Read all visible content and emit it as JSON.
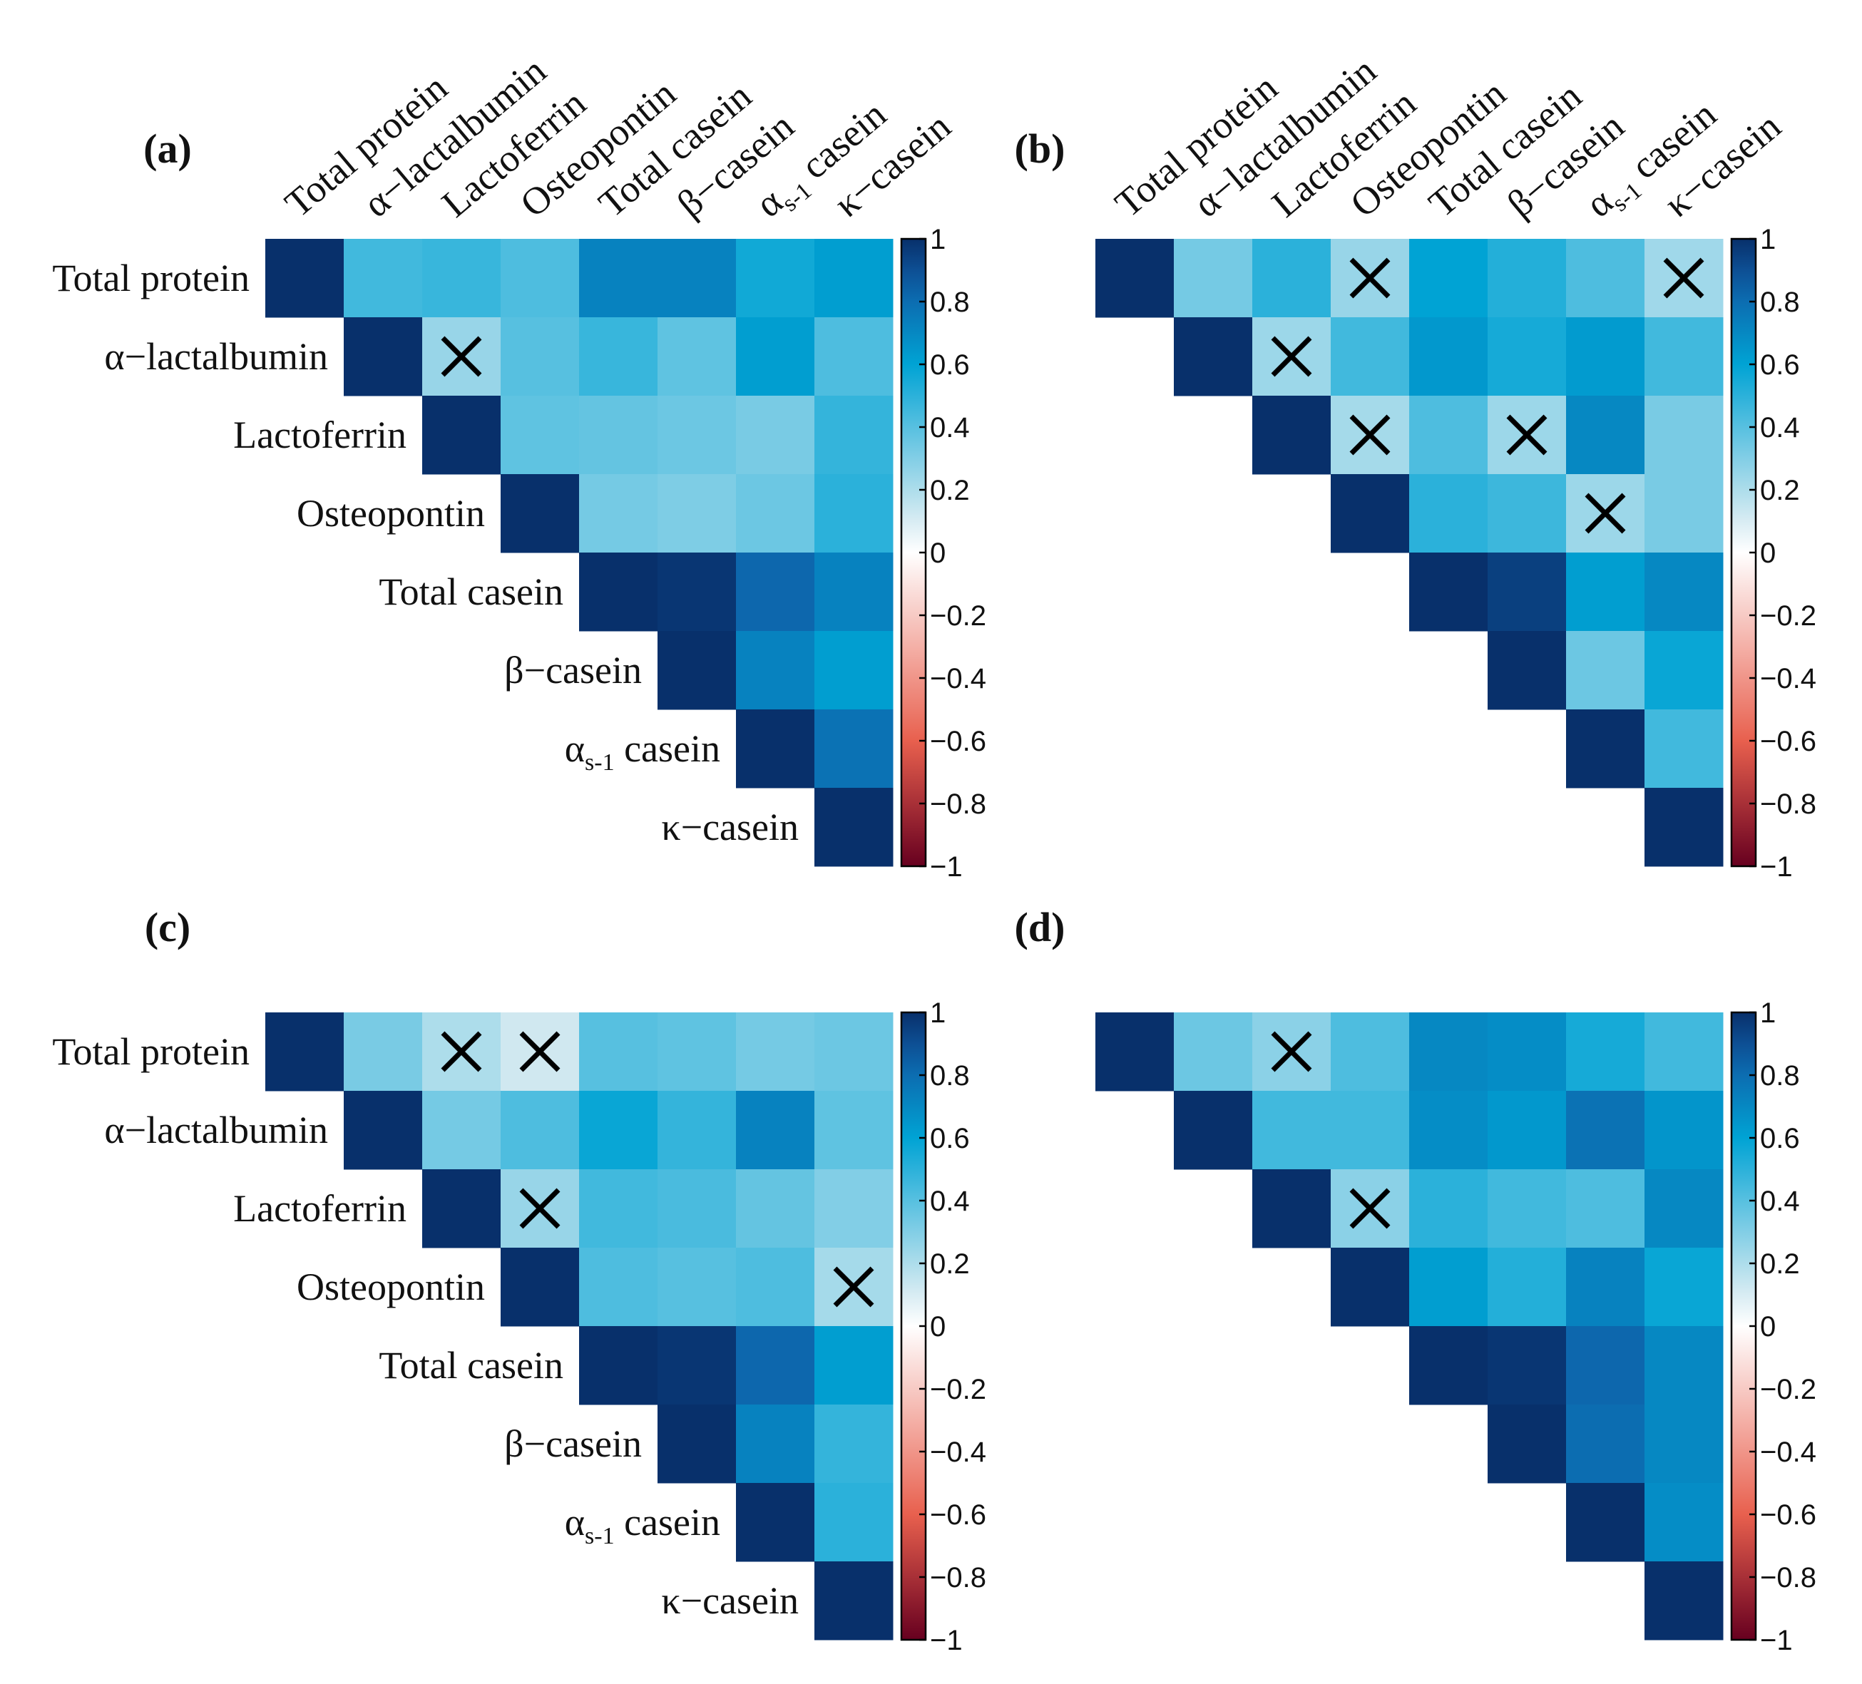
{
  "colorbar": {
    "range": [
      -1,
      1
    ],
    "ticks": [
      "1",
      "0.8",
      "0.6",
      "0.4",
      "0.2",
      "0",
      "−0.2",
      "−0.4",
      "−0.6",
      "−0.8",
      "−1"
    ],
    "colors": {
      "neg_end": "#67001f",
      "neg_mid": "#e8604e",
      "zero": "#ffffff",
      "pos_low": "#d0e8f0",
      "pos_mid": "#00a3d4",
      "pos_high": "#0f5fa8",
      "pos_end": "#08306b"
    }
  },
  "chart_data": [
    {
      "type": "heatmap",
      "label": "(a)",
      "variables": [
        "Total protein",
        "α−lactalbumin",
        "Lactoferrin",
        "Osteopontin",
        "Total casein",
        "β−casein",
        "αs-1 casein",
        "κ−casein"
      ],
      "show_column_labels": true,
      "show_row_labels": true,
      "matrix": [
        [
          1,
          0.45,
          0.47,
          0.42,
          0.72,
          0.72,
          0.56,
          0.62
        ],
        [
          null,
          1,
          0.25,
          0.4,
          0.47,
          0.38,
          0.62,
          0.42
        ],
        [
          null,
          null,
          1,
          0.38,
          0.37,
          0.35,
          0.32,
          0.48
        ],
        [
          null,
          null,
          null,
          1,
          0.33,
          0.31,
          0.35,
          0.5
        ],
        [
          null,
          null,
          null,
          null,
          1,
          0.98,
          0.82,
          0.72
        ],
        [
          null,
          null,
          null,
          null,
          null,
          1,
          0.72,
          0.62
        ],
        [
          null,
          null,
          null,
          null,
          null,
          null,
          1,
          0.78
        ],
        [
          null,
          null,
          null,
          null,
          null,
          null,
          null,
          1
        ]
      ],
      "not_significant": [
        [
          1,
          2
        ]
      ]
    },
    {
      "type": "heatmap",
      "label": "(b)",
      "variables": [
        "Total protein",
        "α−lactalbumin",
        "Lactoferrin",
        "Osteopontin",
        "Total casein",
        "β−casein",
        "αs-1 casein",
        "κ−casein"
      ],
      "show_column_labels": true,
      "show_row_labels": false,
      "matrix": [
        [
          1,
          0.33,
          0.5,
          0.25,
          0.6,
          0.52,
          0.42,
          0.23
        ],
        [
          null,
          1,
          0.24,
          0.45,
          0.64,
          0.55,
          0.63,
          0.45
        ],
        [
          null,
          null,
          1,
          0.22,
          0.42,
          0.24,
          0.7,
          0.32
        ],
        [
          null,
          null,
          null,
          1,
          0.5,
          0.46,
          0.24,
          0.32
        ],
        [
          null,
          null,
          null,
          null,
          1,
          0.95,
          0.62,
          0.7
        ],
        [
          null,
          null,
          null,
          null,
          null,
          1,
          0.35,
          0.58
        ],
        [
          null,
          null,
          null,
          null,
          null,
          null,
          1,
          0.45
        ],
        [
          null,
          null,
          null,
          null,
          null,
          null,
          null,
          1
        ]
      ],
      "not_significant": [
        [
          0,
          3
        ],
        [
          0,
          7
        ],
        [
          1,
          2
        ],
        [
          2,
          3
        ],
        [
          2,
          5
        ],
        [
          3,
          6
        ]
      ]
    },
    {
      "type": "heatmap",
      "label": "(c)",
      "variables": [
        "Total protein",
        "α−lactalbumin",
        "Lactoferrin",
        "Osteopontin",
        "Total casein",
        "β−casein",
        "αs-1 casein",
        "κ−casein"
      ],
      "show_column_labels": false,
      "show_row_labels": true,
      "matrix": [
        [
          1,
          0.32,
          0.2,
          0.12,
          0.4,
          0.38,
          0.33,
          0.35
        ],
        [
          null,
          1,
          0.33,
          0.42,
          0.58,
          0.48,
          0.72,
          0.38
        ],
        [
          null,
          null,
          1,
          0.25,
          0.45,
          0.43,
          0.37,
          0.3
        ],
        [
          null,
          null,
          null,
          1,
          0.42,
          0.4,
          0.42,
          0.22
        ],
        [
          null,
          null,
          null,
          null,
          1,
          0.98,
          0.82,
          0.62
        ],
        [
          null,
          null,
          null,
          null,
          null,
          1,
          0.72,
          0.48
        ],
        [
          null,
          null,
          null,
          null,
          null,
          null,
          1,
          0.5
        ],
        [
          null,
          null,
          null,
          null,
          null,
          null,
          null,
          1
        ]
      ],
      "not_significant": [
        [
          0,
          2
        ],
        [
          0,
          3
        ],
        [
          2,
          3
        ],
        [
          3,
          7
        ]
      ]
    },
    {
      "type": "heatmap",
      "label": "(d)",
      "variables": [
        "Total protein",
        "α−lactalbumin",
        "Lactoferrin",
        "Osteopontin",
        "Total casein",
        "β−casein",
        "αs-1 casein",
        "κ−casein"
      ],
      "show_column_labels": false,
      "show_row_labels": false,
      "matrix": [
        [
          1,
          0.35,
          0.28,
          0.42,
          0.7,
          0.68,
          0.55,
          0.45
        ],
        [
          null,
          1,
          0.45,
          0.45,
          0.68,
          0.64,
          0.78,
          0.65
        ],
        [
          null,
          null,
          1,
          0.28,
          0.5,
          0.45,
          0.42,
          0.7
        ],
        [
          null,
          null,
          null,
          1,
          0.62,
          0.52,
          0.72,
          0.58
        ],
        [
          null,
          null,
          null,
          null,
          1,
          0.98,
          0.82,
          0.7
        ],
        [
          null,
          null,
          null,
          null,
          null,
          1,
          0.8,
          0.7
        ],
        [
          null,
          null,
          null,
          null,
          null,
          null,
          1,
          0.68
        ],
        [
          null,
          null,
          null,
          null,
          null,
          null,
          null,
          1
        ]
      ],
      "not_significant": [
        [
          0,
          2
        ],
        [
          2,
          3
        ]
      ]
    }
  ]
}
